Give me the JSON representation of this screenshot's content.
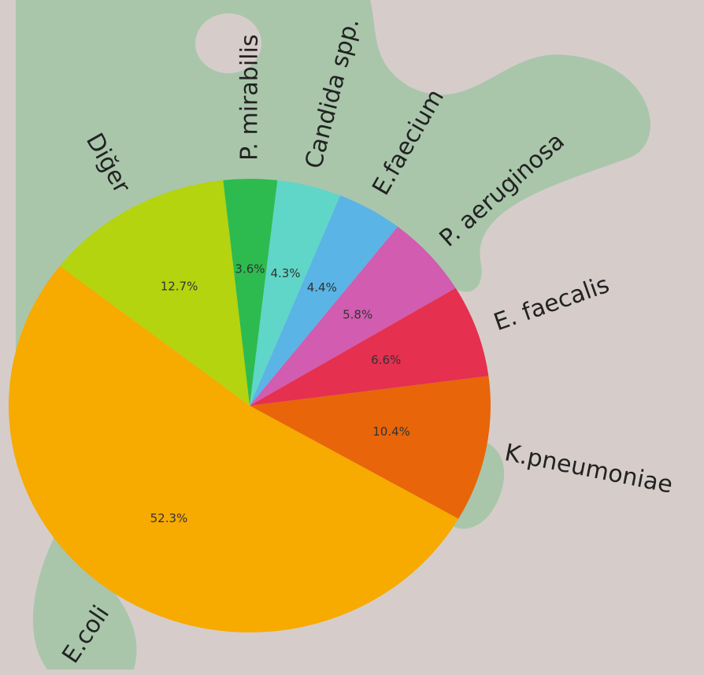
{
  "chart_data": {
    "type": "pie",
    "categories": [
      "E.coli",
      "K.pneumoniae",
      "E. faecalis",
      "P. aeruginosa",
      "E.faecium",
      "Candida spp.",
      "P. mirabilis",
      "Diğer"
    ],
    "values": [
      52.3,
      10.4,
      6.6,
      5.8,
      4.4,
      4.3,
      3.6,
      12.7
    ],
    "value_labels": [
      "52.3%",
      "10.4%",
      "6.6%",
      "5.8%",
      "4.4%",
      "4.3%",
      "3.6%",
      "12.7%"
    ],
    "colors": [
      "#f7aa00",
      "#e8650a",
      "#e5304f",
      "#d15cb0",
      "#5ab4e5",
      "#5fd6c8",
      "#2dbb4f",
      "#b3d40f"
    ]
  }
}
